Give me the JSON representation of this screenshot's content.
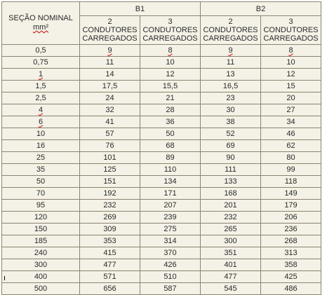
{
  "header": {
    "section_label": "SEÇÃO NOMINAL",
    "section_unit": "mm²",
    "groups": [
      "B1",
      "B2"
    ],
    "subheaders": [
      [
        "2",
        "CONDUTORES",
        "CARREGADOS"
      ],
      [
        "3",
        "CONDUTORES",
        "CARREGADOS"
      ],
      [
        "2",
        "CONDUTORES",
        "CARREGADOS"
      ],
      [
        "3",
        "CONDUTORES",
        "CARREGADOS"
      ]
    ]
  },
  "rows": [
    [
      "0,5",
      "9",
      "8",
      "9",
      "8"
    ],
    [
      "0,75",
      "11",
      "10",
      "11",
      "10"
    ],
    [
      "1",
      "14",
      "12",
      "13",
      "12"
    ],
    [
      "1,5",
      "17,5",
      "15,5",
      "16,5",
      "15"
    ],
    [
      "2,5",
      "24",
      "21",
      "23",
      "20"
    ],
    [
      "4",
      "32",
      "28",
      "30",
      "27"
    ],
    [
      "6",
      "41",
      "36",
      "38",
      "34"
    ],
    [
      "10",
      "57",
      "50",
      "52",
      "46"
    ],
    [
      "16",
      "76",
      "68",
      "69",
      "62"
    ],
    [
      "25",
      "101",
      "89",
      "90",
      "80"
    ],
    [
      "35",
      "125",
      "110",
      "111",
      "99"
    ],
    [
      "50",
      "151",
      "134",
      "133",
      "118"
    ],
    [
      "70",
      "192",
      "171",
      "168",
      "149"
    ],
    [
      "95",
      "232",
      "207",
      "201",
      "179"
    ],
    [
      "120",
      "269",
      "239",
      "232",
      "206"
    ],
    [
      "150",
      "309",
      "275",
      "265",
      "236"
    ],
    [
      "185",
      "353",
      "314",
      "300",
      "268"
    ],
    [
      "240",
      "415",
      "370",
      "351",
      "313"
    ],
    [
      "300",
      "477",
      "426",
      "401",
      "358"
    ],
    [
      "400",
      "571",
      "510",
      "477",
      "425"
    ],
    [
      "500",
      "656",
      "587",
      "545",
      "486"
    ]
  ]
}
